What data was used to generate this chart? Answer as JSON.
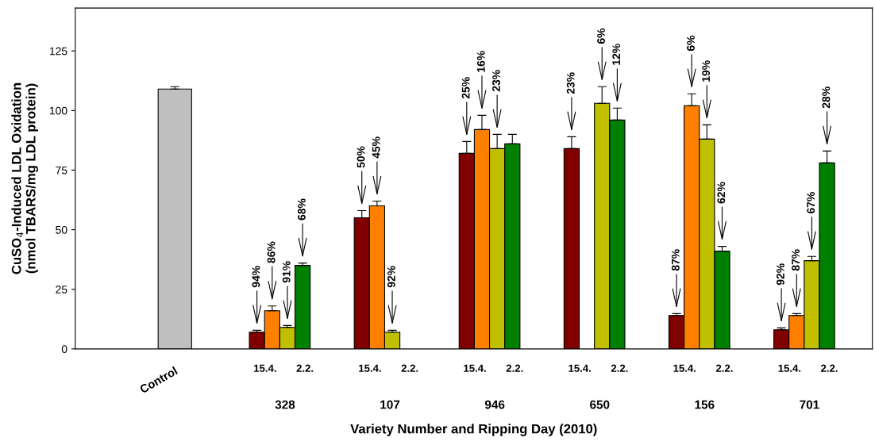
{
  "chart_data": {
    "type": "bar",
    "xlabel": "Variety Number and Ripping Day (2010)",
    "ylabel": "CuSO$_{4}$-Induced LDL Oxidation\n(nmol TBARS/mg LDL protein)",
    "categories": [
      "Control",
      "328",
      "107",
      "946",
      "650",
      "156",
      "701"
    ],
    "ylim": [
      0,
      143
    ],
    "yticks": [
      0,
      25,
      50,
      75,
      100,
      125
    ],
    "grid": false,
    "legend": false,
    "series": [
      {
        "color": "#c0c0c0",
        "values": [
          109,
          null,
          null,
          null,
          null,
          null,
          null
        ],
        "errors": [
          1,
          null,
          null,
          null,
          null,
          null,
          null
        ]
      },
      {
        "color": "#800000",
        "values": [
          null,
          7,
          55,
          82,
          84,
          14,
          8
        ],
        "errors": [
          null,
          0.8,
          3,
          5,
          5,
          0.8,
          0.8
        ]
      },
      {
        "color": "#ff8000",
        "values": [
          null,
          16,
          60,
          92,
          null,
          102,
          14
        ],
        "errors": [
          null,
          2,
          2,
          6,
          null,
          5,
          0.8
        ]
      },
      {
        "color": "#c0c000",
        "values": [
          null,
          9,
          7,
          84,
          103,
          88,
          37
        ],
        "errors": [
          null,
          0.8,
          0.8,
          6,
          7,
          6,
          1.8
        ]
      },
      {
        "color": "#008000",
        "values": [
          null,
          35,
          null,
          86,
          96,
          41,
          78
        ],
        "errors": [
          null,
          1,
          null,
          4,
          5,
          2,
          5
        ]
      }
    ],
    "annotations": [
      "15.4.",
      "2.2.",
      "15.4.",
      "2.2.",
      "15.4.",
      "2.2.",
      "15.4.",
      "2.2.",
      "15.4.",
      "2.2.",
      "15.4.",
      "2.2.",
      "94%",
      "86%",
      "91%",
      "68%",
      "50%",
      "45%",
      "92%",
      "25%",
      "16%",
      "23%",
      "23%",
      "6%",
      "12%",
      "87%",
      "6%",
      "19%",
      "62%",
      "92%",
      "87%",
      "67%",
      "28%"
    ]
  }
}
